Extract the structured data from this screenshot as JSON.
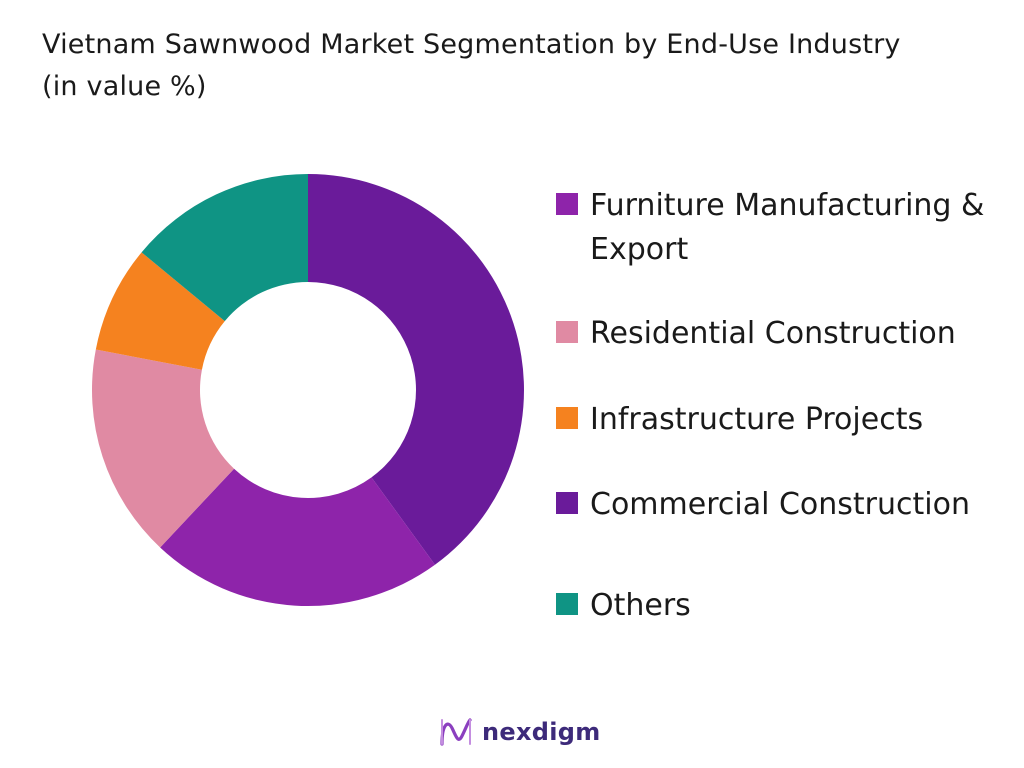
{
  "title": "Vietnam Sawnwood Market Segmentation by End-Use Industry (in value %)",
  "brand": {
    "logo_text": "nexdigm",
    "logo_color": "#3d2a7a",
    "logo_accent": "#8b3fbf"
  },
  "chart_data": {
    "type": "pie",
    "variant": "donut",
    "title": "Vietnam Sawnwood Market Segmentation by End-Use Industry (in value %)",
    "legend_position": "right",
    "categories": [
      "Furniture Manufacturing & Export",
      "Residential Construction",
      "Infrastructure Projects",
      "Commercial Construction",
      "Others"
    ],
    "slices": [
      {
        "label": "Commercial Construction",
        "value": 40,
        "color": "#6a1b9a"
      },
      {
        "label": "Furniture Manufacturing & Export",
        "value": 22,
        "color": "#8e24aa"
      },
      {
        "label": "Residential Construction",
        "value": 16,
        "color": "#e08aa3"
      },
      {
        "label": "Infrastructure Projects",
        "value": 8,
        "color": "#f5821f"
      },
      {
        "label": "Others",
        "value": 14,
        "color": "#0f9484"
      }
    ],
    "legend": [
      {
        "label": "Furniture Manufacturing & Export",
        "color": "#8e24aa"
      },
      {
        "label": "Residential Construction",
        "color": "#e08aa3"
      },
      {
        "label": "Infrastructure Projects",
        "color": "#f5821f"
      },
      {
        "label": "Commercial Construction",
        "color": "#6a1b9a"
      },
      {
        "label": "Others",
        "color": "#0f9484"
      }
    ]
  }
}
